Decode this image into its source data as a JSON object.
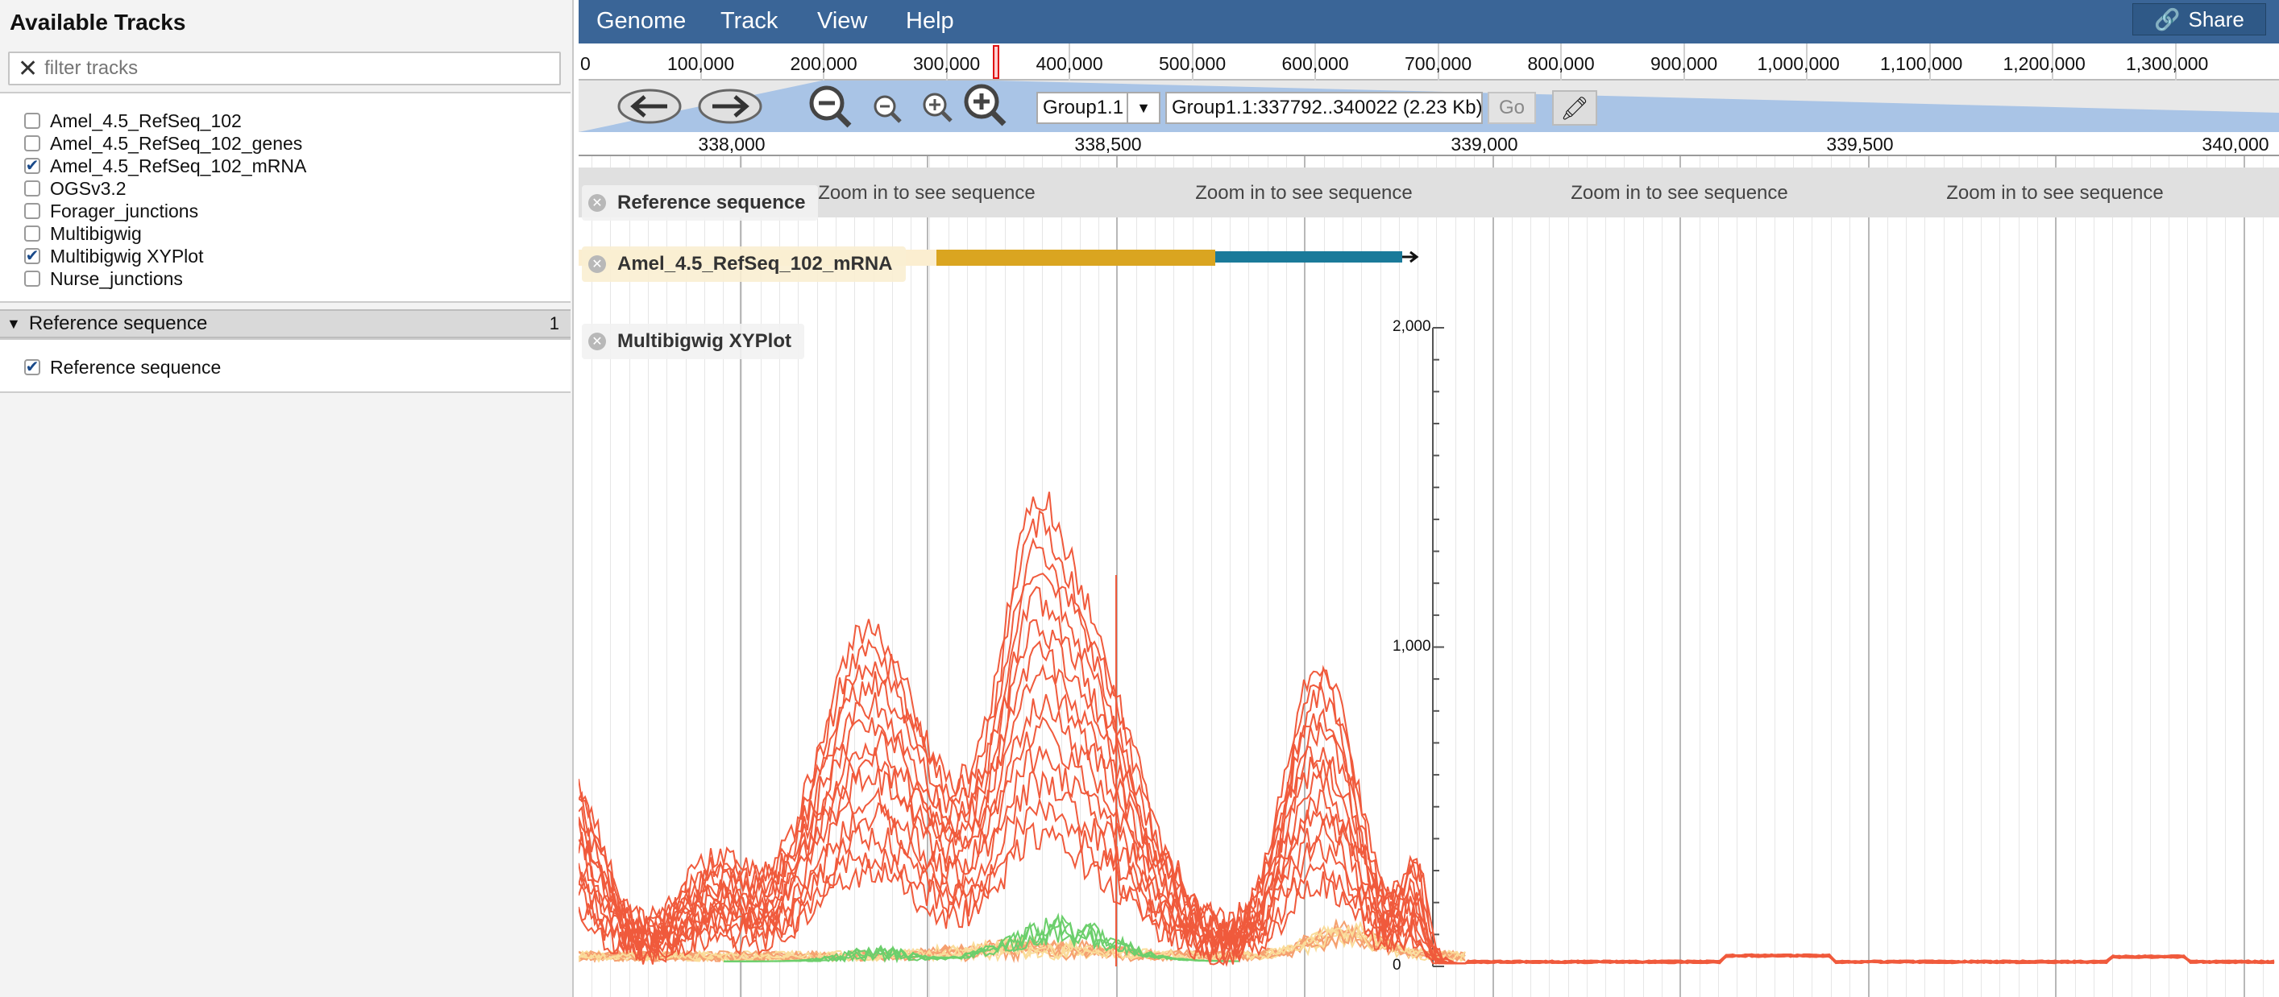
{
  "left_panel": {
    "title": "Available Tracks",
    "filter_placeholder": "filter tracks",
    "tracks": [
      {
        "label": "Amel_4.5_RefSeq_102",
        "checked": false
      },
      {
        "label": "Amel_4.5_RefSeq_102_genes",
        "checked": false
      },
      {
        "label": "Amel_4.5_RefSeq_102_mRNA",
        "checked": true
      },
      {
        "label": "OGSv3.2",
        "checked": false
      },
      {
        "label": "Forager_junctions",
        "checked": false
      },
      {
        "label": "Multibigwig",
        "checked": false
      },
      {
        "label": "Multibigwig XYPlot",
        "checked": true
      },
      {
        "label": "Nurse_junctions",
        "checked": false
      }
    ],
    "category": {
      "label": "Reference sequence",
      "count": "1",
      "items": [
        {
          "label": "Reference sequence",
          "checked": true
        }
      ]
    }
  },
  "menu": {
    "genome": "Genome",
    "track": "Track",
    "view": "View",
    "help": "Help",
    "share": "Share"
  },
  "overview_ticks": [
    "0",
    "100,000",
    "200,000",
    "300,000",
    "400,000",
    "500,000",
    "600,000",
    "700,000",
    "800,000",
    "900,000",
    "1,000,000",
    "1,100,000",
    "1,200,000",
    "1,300,000"
  ],
  "nav": {
    "ref_seq": "Group1.1",
    "location": "Group1.1:337792..340022 (2.23 Kb)",
    "go": "Go"
  },
  "scale_ticks": [
    "338,000",
    "338,500",
    "339,000",
    "339,500",
    "340,000"
  ],
  "tracks": {
    "refseq_label": "Reference sequence",
    "refseq_partial": "sequence",
    "zoom_message": "Zoom in to see sequence",
    "mrna_label": "Amel_4.5_RefSeq_102_mRNA",
    "xyplot_label": "Multibigwig XYPlot",
    "y_ticks": [
      "2,000",
      "1,000",
      "0"
    ]
  },
  "colors": {
    "menubar": "#3a6597",
    "feature_utr": "#daa520",
    "feature_cds": "#1a7a9a",
    "series_red": "#f05a3c",
    "series_orange": "#f5a070",
    "series_yellow": "#fadc9a",
    "series_green": "#6ccf6c"
  }
}
